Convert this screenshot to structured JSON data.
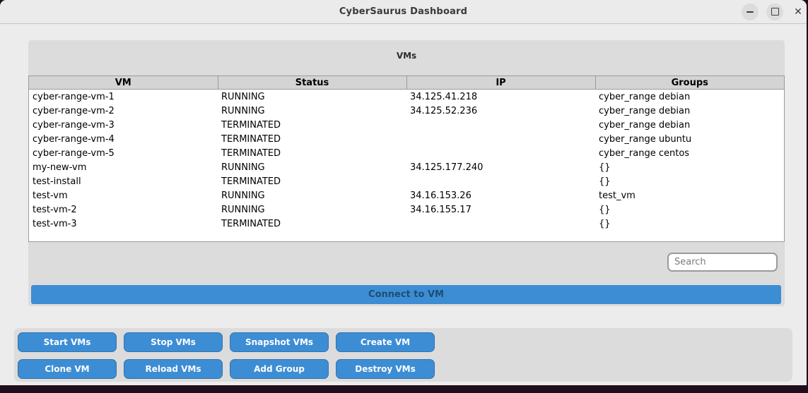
{
  "window": {
    "title": "CyberSaurus Dashboard",
    "controls": {
      "minimize": "minimize",
      "maximize": "maximize",
      "close": "close",
      "close_glyph": "✕"
    }
  },
  "vms_panel": {
    "label": "VMs",
    "search": {
      "placeholder": "Search",
      "value": ""
    },
    "connect_button_label": "Connect to VM"
  },
  "table": {
    "columns": [
      "VM",
      "Status",
      "IP",
      "Groups"
    ],
    "rows": [
      {
        "vm": "cyber-range-vm-1",
        "status": "RUNNING",
        "ip": "34.125.41.218",
        "groups": "cyber_range debian"
      },
      {
        "vm": "cyber-range-vm-2",
        "status": "RUNNING",
        "ip": "34.125.52.236",
        "groups": "cyber_range debian"
      },
      {
        "vm": "cyber-range-vm-3",
        "status": "TERMINATED",
        "ip": "",
        "groups": "cyber_range debian"
      },
      {
        "vm": "cyber-range-vm-4",
        "status": "TERMINATED",
        "ip": "",
        "groups": "cyber_range ubuntu"
      },
      {
        "vm": "cyber-range-vm-5",
        "status": "TERMINATED",
        "ip": "",
        "groups": "cyber_range centos"
      },
      {
        "vm": "my-new-vm",
        "status": "RUNNING",
        "ip": "34.125.177.240",
        "groups": "{}"
      },
      {
        "vm": "test-install",
        "status": "TERMINATED",
        "ip": "",
        "groups": "{}"
      },
      {
        "vm": "test-vm",
        "status": "RUNNING",
        "ip": "34.16.153.26",
        "groups": "test_vm"
      },
      {
        "vm": "test-vm-2",
        "status": "RUNNING",
        "ip": "34.16.155.17",
        "groups": "{}"
      },
      {
        "vm": "test-vm-3",
        "status": "TERMINATED",
        "ip": "",
        "groups": "{}"
      }
    ]
  },
  "actions": {
    "rows": [
      [
        "Start VMs",
        "Stop VMs",
        "Snapshot VMs",
        "Create VM"
      ],
      [
        "Clone VM",
        "Reload VMs",
        "Add Group",
        "Destroy VMs"
      ]
    ]
  },
  "colors": {
    "accent_blue": "#3d8dd5",
    "connect_text": "#1d4e74",
    "panel_gray": "#dcdcdc",
    "window_bg": "#ececec",
    "desktop_dark": "#200d1d"
  }
}
